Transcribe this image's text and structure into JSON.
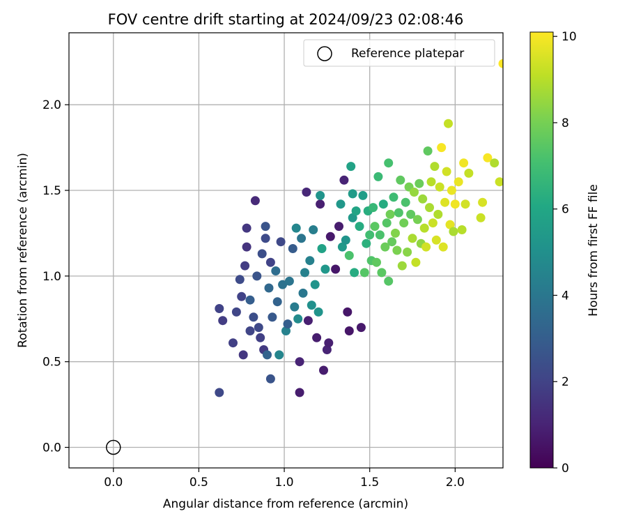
{
  "chart_data": {
    "type": "scatter",
    "title": "FOV centre drift starting at 2024/09/23 02:08:46",
    "xlabel": "Angular distance from reference (arcmin)",
    "ylabel": "Rotation from reference (arcmin)",
    "xlim": [
      -0.26,
      2.28
    ],
    "ylim": [
      -0.12,
      2.42
    ],
    "x_ticks": [
      "0.0",
      "0.5",
      "1.0",
      "1.5",
      "2.0"
    ],
    "y_ticks": [
      "0.0",
      "0.5",
      "1.0",
      "1.5",
      "2.0"
    ],
    "grid": true,
    "legend": {
      "position": "top-right",
      "entries": [
        {
          "label": "Reference platepar",
          "marker": "open-circle"
        }
      ]
    },
    "reference_point": {
      "x": 0.0,
      "y": 0.0
    },
    "colorbar": {
      "label": "Hours from first FF file",
      "min": 0,
      "max": 10.1,
      "ticks": [
        "0",
        "2",
        "4",
        "6",
        "8",
        "10"
      ],
      "colormap": "viridis"
    },
    "points": [
      [
        0.62,
        0.32,
        2.2
      ],
      [
        0.62,
        0.81,
        2.0
      ],
      [
        0.64,
        0.74,
        1.8
      ],
      [
        0.7,
        0.61,
        1.9
      ],
      [
        0.72,
        0.79,
        2.1
      ],
      [
        0.74,
        0.98,
        2.3
      ],
      [
        0.75,
        0.88,
        2.0
      ],
      [
        0.76,
        0.54,
        1.6
      ],
      [
        0.77,
        1.06,
        1.8
      ],
      [
        0.78,
        1.17,
        1.5
      ],
      [
        0.78,
        1.28,
        1.6
      ],
      [
        0.8,
        0.86,
        3.0
      ],
      [
        0.8,
        0.68,
        2.1
      ],
      [
        0.82,
        0.76,
        2.4
      ],
      [
        0.83,
        1.44,
        1.2
      ],
      [
        0.84,
        1.0,
        2.6
      ],
      [
        0.85,
        0.7,
        2.2
      ],
      [
        0.86,
        0.64,
        1.9
      ],
      [
        0.87,
        1.13,
        2.4
      ],
      [
        0.88,
        0.57,
        1.7
      ],
      [
        0.89,
        1.29,
        2.6
      ],
      [
        0.89,
        1.22,
        2.3
      ],
      [
        0.9,
        0.54,
        3.2
      ],
      [
        0.91,
        0.93,
        3.4
      ],
      [
        0.92,
        1.08,
        2.0
      ],
      [
        0.92,
        0.4,
        2.6
      ],
      [
        0.93,
        0.76,
        2.8
      ],
      [
        0.95,
        1.03,
        3.6
      ],
      [
        0.96,
        0.85,
        3.2
      ],
      [
        0.97,
        0.54,
        4.6
      ],
      [
        0.98,
        1.2,
        2.2
      ],
      [
        0.99,
        0.95,
        3.8
      ],
      [
        1.01,
        0.68,
        4.4
      ],
      [
        1.02,
        0.72,
        3.0
      ],
      [
        1.03,
        0.97,
        3.9
      ],
      [
        1.05,
        1.16,
        2.9
      ],
      [
        1.06,
        0.82,
        4.2
      ],
      [
        1.07,
        1.28,
        4.6
      ],
      [
        1.08,
        0.75,
        4.8
      ],
      [
        1.09,
        0.5,
        1.0
      ],
      [
        1.09,
        0.32,
        0.8
      ],
      [
        1.1,
        1.22,
        3.9
      ],
      [
        1.11,
        0.9,
        4.0
      ],
      [
        1.12,
        1.02,
        4.4
      ],
      [
        1.13,
        1.49,
        1.1
      ],
      [
        1.14,
        0.74,
        0.9
      ],
      [
        1.15,
        1.09,
        4.4
      ],
      [
        1.16,
        0.83,
        5.0
      ],
      [
        1.17,
        1.27,
        4.3
      ],
      [
        1.18,
        0.95,
        5.2
      ],
      [
        1.19,
        0.64,
        0.8
      ],
      [
        1.2,
        0.79,
        5.2
      ],
      [
        1.21,
        1.42,
        0.9
      ],
      [
        1.21,
        1.47,
        5.2
      ],
      [
        1.22,
        1.16,
        5.8
      ],
      [
        1.23,
        0.45,
        0.8
      ],
      [
        1.24,
        1.04,
        5.3
      ],
      [
        1.25,
        0.57,
        1.0
      ],
      [
        1.26,
        0.61,
        0.9
      ],
      [
        1.27,
        1.23,
        0.7
      ],
      [
        1.3,
        1.04,
        0.6
      ],
      [
        1.32,
        1.29,
        0.8
      ],
      [
        1.33,
        1.42,
        5.3
      ],
      [
        1.34,
        1.17,
        5.4
      ],
      [
        1.35,
        1.56,
        1.0
      ],
      [
        1.36,
        1.21,
        5.2
      ],
      [
        1.37,
        0.79,
        0.6
      ],
      [
        1.38,
        0.68,
        0.6
      ],
      [
        1.38,
        1.12,
        7.2
      ],
      [
        1.39,
        1.64,
        5.8
      ],
      [
        1.4,
        1.34,
        5.4
      ],
      [
        1.4,
        1.48,
        5.5
      ],
      [
        1.41,
        1.02,
        6.2
      ],
      [
        1.42,
        1.38,
        5.9
      ],
      [
        1.44,
        1.29,
        6.2
      ],
      [
        1.45,
        0.7,
        0.7
      ],
      [
        1.46,
        1.47,
        5.6
      ],
      [
        1.47,
        1.02,
        7.4
      ],
      [
        1.48,
        1.19,
        6.4
      ],
      [
        1.49,
        1.38,
        6.3
      ],
      [
        1.5,
        1.24,
        7.0
      ],
      [
        1.51,
        1.09,
        7.3
      ],
      [
        1.52,
        1.4,
        6.7
      ],
      [
        1.53,
        1.29,
        7.5
      ],
      [
        1.54,
        1.08,
        7.6
      ],
      [
        1.55,
        1.58,
        6.8
      ],
      [
        1.56,
        1.24,
        7.2
      ],
      [
        1.57,
        1.02,
        7.5
      ],
      [
        1.58,
        1.42,
        6.2
      ],
      [
        1.59,
        1.17,
        7.8
      ],
      [
        1.6,
        1.31,
        7.4
      ],
      [
        1.61,
        0.97,
        7.4
      ],
      [
        1.61,
        1.66,
        7.1
      ],
      [
        1.62,
        1.36,
        7.9
      ],
      [
        1.63,
        1.2,
        7.7
      ],
      [
        1.64,
        1.46,
        6.9
      ],
      [
        1.65,
        1.25,
        8.2
      ],
      [
        1.66,
        1.15,
        8.1
      ],
      [
        1.67,
        1.37,
        7.3
      ],
      [
        1.68,
        1.56,
        7.6
      ],
      [
        1.69,
        1.06,
        8.6
      ],
      [
        1.7,
        1.31,
        7.9
      ],
      [
        1.71,
        1.43,
        7.2
      ],
      [
        1.72,
        1.14,
        8.3
      ],
      [
        1.73,
        1.52,
        8.0
      ],
      [
        1.74,
        1.36,
        7.6
      ],
      [
        1.75,
        1.22,
        8.8
      ],
      [
        1.76,
        1.49,
        8.5
      ],
      [
        1.77,
        1.08,
        9.2
      ],
      [
        1.78,
        1.33,
        8.0
      ],
      [
        1.79,
        1.54,
        7.8
      ],
      [
        1.8,
        1.19,
        8.4
      ],
      [
        1.81,
        1.45,
        8.6
      ],
      [
        1.82,
        1.28,
        9.0
      ],
      [
        1.83,
        1.17,
        9.4
      ],
      [
        1.84,
        1.73,
        7.6
      ],
      [
        1.85,
        1.4,
        8.8
      ],
      [
        1.86,
        1.55,
        9.0
      ],
      [
        1.87,
        1.31,
        9.3
      ],
      [
        1.88,
        1.64,
        8.9
      ],
      [
        1.89,
        1.21,
        9.5
      ],
      [
        1.9,
        1.36,
        8.9
      ],
      [
        1.91,
        1.52,
        9.3
      ],
      [
        1.92,
        1.75,
        10.0
      ],
      [
        1.93,
        1.17,
        9.6
      ],
      [
        1.94,
        1.43,
        9.6
      ],
      [
        1.95,
        1.61,
        9.4
      ],
      [
        1.96,
        1.89,
        9.2
      ],
      [
        1.97,
        1.3,
        9.7
      ],
      [
        1.98,
        1.5,
        9.8
      ],
      [
        1.99,
        1.26,
        8.8
      ],
      [
        2.0,
        1.42,
        9.9
      ],
      [
        2.02,
        1.55,
        9.8
      ],
      [
        2.04,
        1.27,
        9.0
      ],
      [
        2.05,
        1.66,
        9.9
      ],
      [
        2.06,
        1.42,
        9.4
      ],
      [
        2.08,
        1.6,
        9.2
      ],
      [
        2.15,
        1.34,
        9.3
      ],
      [
        2.16,
        1.43,
        9.5
      ],
      [
        2.19,
        1.69,
        10.0
      ],
      [
        2.23,
        1.66,
        8.9
      ],
      [
        2.26,
        1.55,
        9.3
      ],
      [
        2.28,
        2.24,
        10.1
      ]
    ],
    "generated_cluster_note": ""
  }
}
